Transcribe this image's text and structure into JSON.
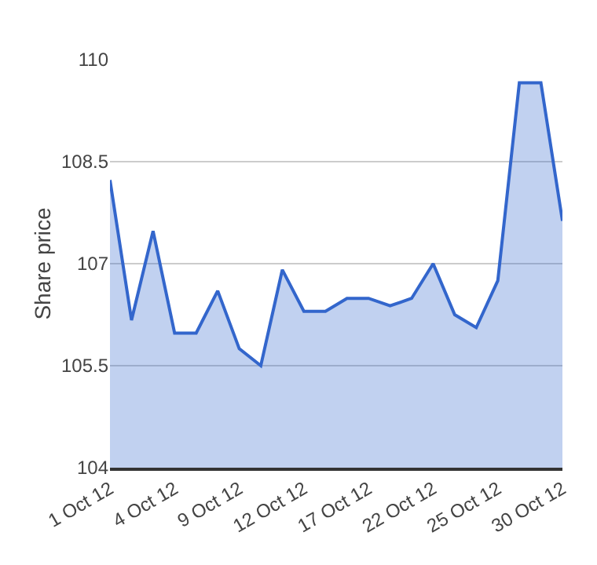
{
  "chart_data": {
    "type": "area",
    "ylabel": "Share price",
    "categories": [
      "1 Oct 12",
      null,
      null,
      "4 Oct 12",
      null,
      null,
      "9 Oct 12",
      null,
      null,
      "12 Oct 12",
      null,
      null,
      "17 Oct 12",
      null,
      null,
      "22 Oct 12",
      null,
      null,
      "25 Oct 12",
      null,
      null,
      "30 Oct 12"
    ],
    "series": [
      {
        "color": "#3366cc",
        "values": [
          108.23,
          106.17,
          107.48,
          105.98,
          105.98,
          106.6,
          105.75,
          105.5,
          106.91,
          106.3,
          106.3,
          106.49,
          106.49,
          106.38,
          106.49,
          107.0,
          106.25,
          106.06,
          106.75,
          109.66,
          109.66,
          107.63
        ]
      }
    ],
    "ylim": [
      104,
      110
    ],
    "yticks": [
      104,
      105.5,
      107,
      108.5,
      110
    ],
    "grid": "y",
    "legend": false
  }
}
